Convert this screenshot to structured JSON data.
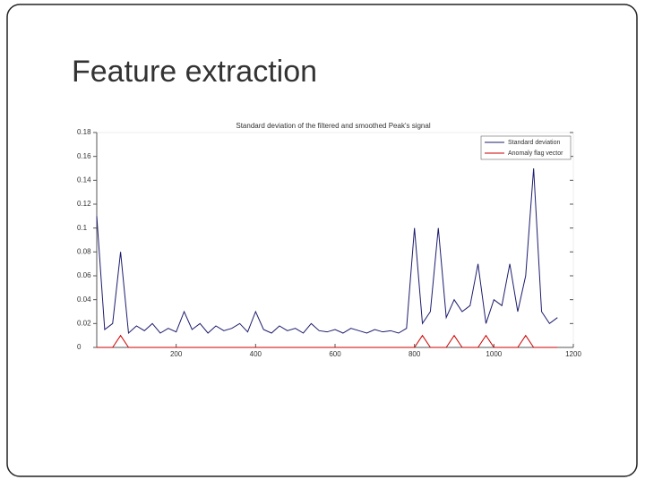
{
  "slide_title": "Feature extraction",
  "chart_data": {
    "type": "line",
    "title": "Standard deviation of the filtered and smoothed Peak's signal",
    "x": [
      0,
      20,
      40,
      60,
      80,
      100,
      120,
      140,
      160,
      180,
      200,
      220,
      240,
      260,
      280,
      300,
      320,
      340,
      360,
      380,
      400,
      420,
      440,
      460,
      480,
      500,
      520,
      540,
      560,
      580,
      600,
      620,
      640,
      660,
      680,
      700,
      720,
      740,
      760,
      780,
      800,
      820,
      840,
      860,
      880,
      900,
      920,
      940,
      960,
      980,
      1000,
      1020,
      1040,
      1060,
      1080,
      1100,
      1120,
      1140,
      1160
    ],
    "series": [
      {
        "name": "Standard deviation",
        "color": "#1c1c6e",
        "values": [
          0.11,
          0.015,
          0.02,
          0.08,
          0.012,
          0.018,
          0.014,
          0.02,
          0.012,
          0.016,
          0.013,
          0.03,
          0.015,
          0.02,
          0.012,
          0.018,
          0.014,
          0.016,
          0.02,
          0.013,
          0.03,
          0.015,
          0.012,
          0.018,
          0.014,
          0.016,
          0.012,
          0.02,
          0.014,
          0.013,
          0.015,
          0.012,
          0.016,
          0.014,
          0.012,
          0.015,
          0.013,
          0.014,
          0.012,
          0.016,
          0.1,
          0.02,
          0.03,
          0.1,
          0.025,
          0.04,
          0.03,
          0.035,
          0.07,
          0.02,
          0.04,
          0.035,
          0.07,
          0.03,
          0.06,
          0.15,
          0.03,
          0.02,
          0.025
        ]
      },
      {
        "name": "Anomaly flag vector",
        "color": "#cc0000",
        "values": [
          0,
          0,
          0,
          0.01,
          0,
          0,
          0,
          0,
          0,
          0,
          0,
          0,
          0,
          0,
          0,
          0,
          0,
          0,
          0,
          0,
          0,
          0,
          0,
          0,
          0,
          0,
          0,
          0,
          0,
          0,
          0,
          0,
          0,
          0,
          0,
          0,
          0,
          0,
          0,
          0,
          0,
          0.01,
          0,
          0,
          0,
          0.01,
          0,
          0,
          0,
          0.01,
          0,
          0,
          0,
          0,
          0.01,
          0,
          0,
          0,
          0
        ]
      }
    ],
    "xlim": [
      0,
      1200
    ],
    "xticks": [
      200,
      400,
      600,
      800,
      1000,
      1200
    ],
    "ylim": [
      0,
      0.18
    ],
    "yticks": [
      0,
      0.02,
      0.04,
      0.06,
      0.08,
      0.1,
      0.12,
      0.14,
      0.16,
      0.18
    ],
    "legend": "top-right"
  }
}
